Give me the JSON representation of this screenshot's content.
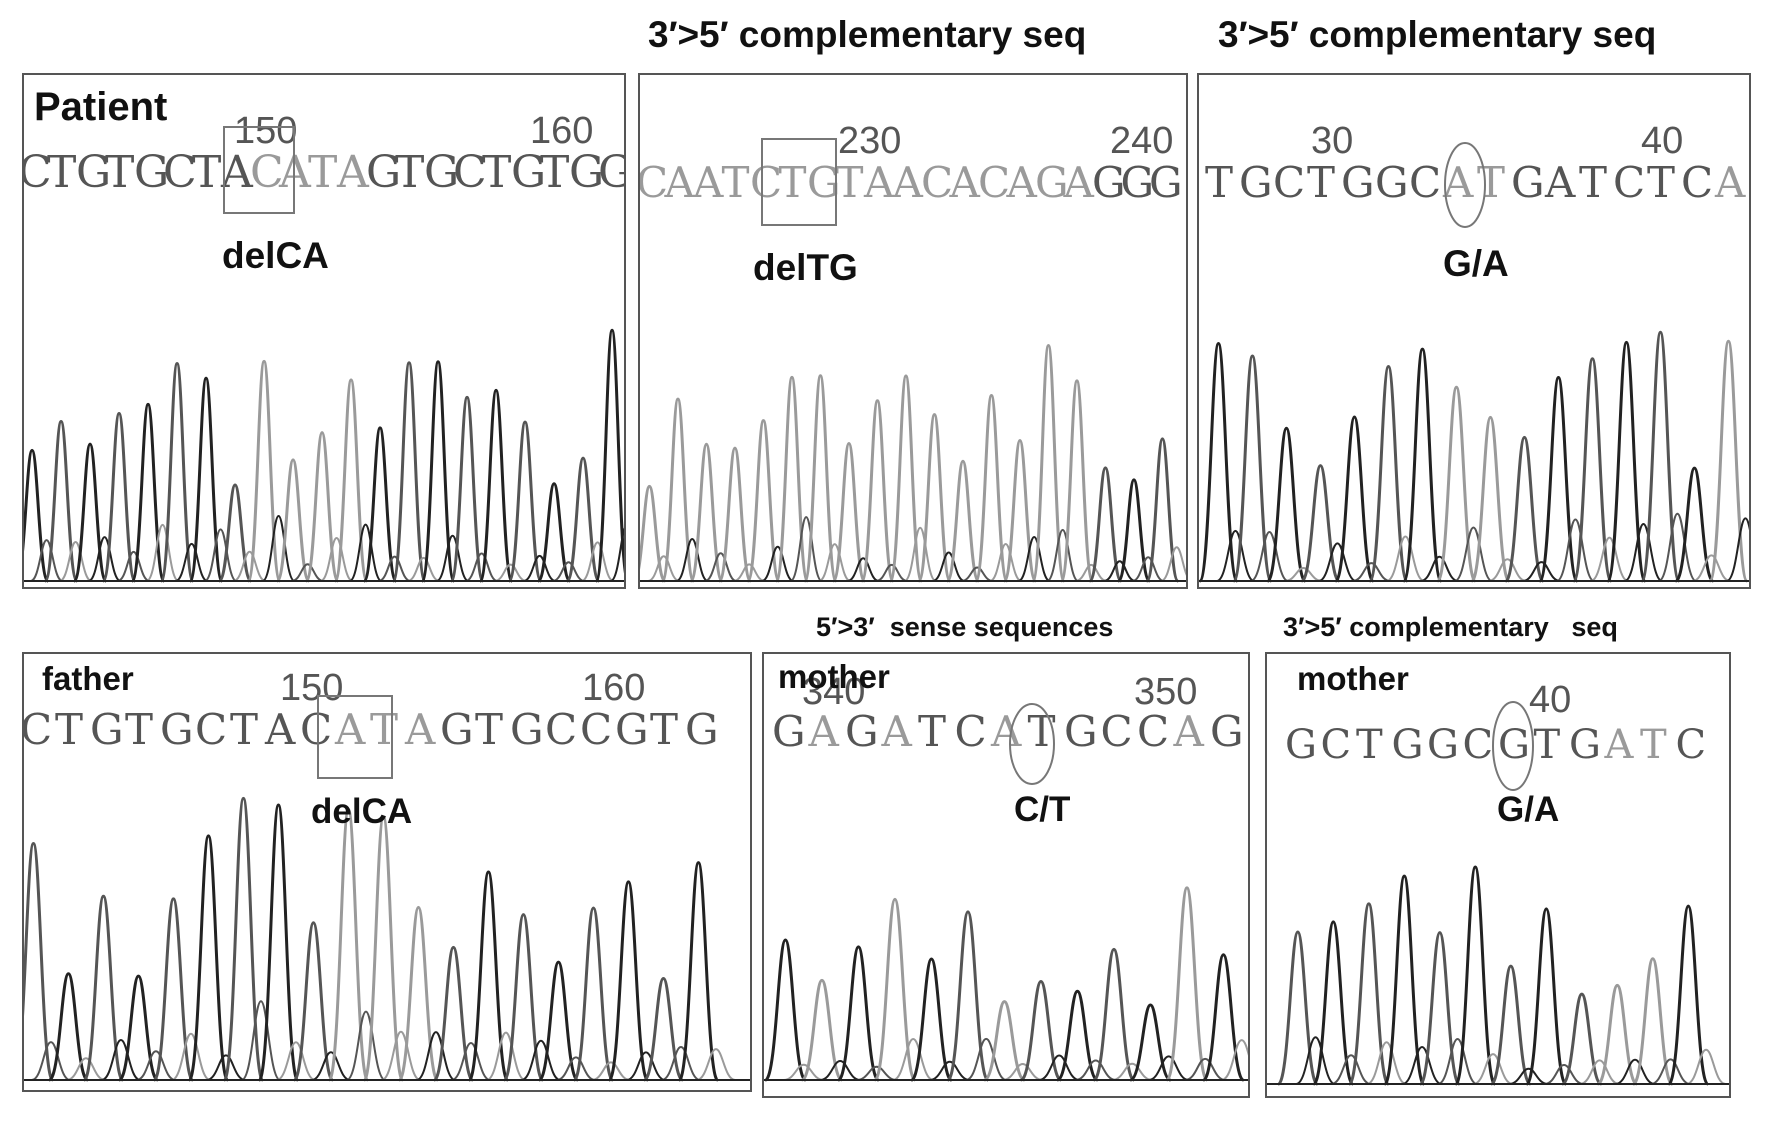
{
  "top_headings": [
    "3′>5′ complementary seq",
    "3′>5′ complementary seq"
  ],
  "bottom_headings": [
    "5′>3′  sense sequences",
    "3′>5′ complementary   seq"
  ],
  "palette": {
    "dark": "#222222",
    "mid": "#555555",
    "light": "#9a9a9a",
    "box": "#777777"
  },
  "panels": [
    {
      "label": "Patient",
      "mutation": "delCA",
      "marker": "box",
      "positions": [
        "150",
        "160"
      ],
      "sequence": [
        {
          "b": "C",
          "s": "m"
        },
        {
          "b": "T",
          "s": "m"
        },
        {
          "b": "G",
          "s": "m"
        },
        {
          "b": "T",
          "s": "m"
        },
        {
          "b": "G",
          "s": "m"
        },
        {
          "b": "C",
          "s": "m"
        },
        {
          "b": "T",
          "s": "m"
        },
        {
          "b": "A",
          "s": "m"
        },
        {
          "b": "C",
          "s": "l"
        },
        {
          "b": "A",
          "s": "l"
        },
        {
          "b": "T",
          "s": "l"
        },
        {
          "b": "A",
          "s": "l"
        },
        {
          "b": "G",
          "s": "m"
        },
        {
          "b": "T",
          "s": "m"
        },
        {
          "b": "G",
          "s": "m"
        },
        {
          "b": "C",
          "s": "m"
        },
        {
          "b": "T",
          "s": "m"
        },
        {
          "b": "G",
          "s": "m"
        },
        {
          "b": "T",
          "s": "m"
        },
        {
          "b": "G",
          "s": "m"
        },
        {
          "b": "G",
          "s": "m"
        }
      ]
    },
    {
      "label": "",
      "mutation": "delTG",
      "marker": "box",
      "positions": [
        "230",
        "240"
      ],
      "sequence": [
        {
          "b": "C",
          "s": "l"
        },
        {
          "b": "A",
          "s": "l"
        },
        {
          "b": "A",
          "s": "l"
        },
        {
          "b": "T",
          "s": "l"
        },
        {
          "b": "C",
          "s": "l"
        },
        {
          "b": "T",
          "s": "l"
        },
        {
          "b": "G",
          "s": "l"
        },
        {
          "b": "T",
          "s": "l"
        },
        {
          "b": "A",
          "s": "l"
        },
        {
          "b": "A",
          "s": "l"
        },
        {
          "b": "C",
          "s": "l"
        },
        {
          "b": "A",
          "s": "l"
        },
        {
          "b": "C",
          "s": "l"
        },
        {
          "b": "A",
          "s": "l"
        },
        {
          "b": "G",
          "s": "l"
        },
        {
          "b": "A",
          "s": "l"
        },
        {
          "b": "G",
          "s": "m"
        },
        {
          "b": "G",
          "s": "m"
        },
        {
          "b": "G",
          "s": "m"
        }
      ]
    },
    {
      "label": "",
      "mutation": "G/A",
      "marker": "ellipse",
      "positions": [
        "30",
        "40"
      ],
      "sequence": [
        {
          "b": "T",
          "s": "m"
        },
        {
          "b": "G",
          "s": "m"
        },
        {
          "b": "C",
          "s": "m"
        },
        {
          "b": "T",
          "s": "m"
        },
        {
          "b": "G",
          "s": "m"
        },
        {
          "b": "G",
          "s": "m"
        },
        {
          "b": "C",
          "s": "m"
        },
        {
          "b": "A",
          "s": "l"
        },
        {
          "b": "T",
          "s": "l"
        },
        {
          "b": "G",
          "s": "m"
        },
        {
          "b": "A",
          "s": "m"
        },
        {
          "b": "T",
          "s": "m"
        },
        {
          "b": "C",
          "s": "m"
        },
        {
          "b": "T",
          "s": "m"
        },
        {
          "b": "C",
          "s": "m"
        },
        {
          "b": "A",
          "s": "l"
        }
      ]
    },
    {
      "label": "father",
      "mutation": "delCA",
      "marker": "box",
      "positions": [
        "150",
        "160"
      ],
      "sequence": [
        {
          "b": "C",
          "s": "m"
        },
        {
          "b": "T",
          "s": "m"
        },
        {
          "b": "G",
          "s": "m"
        },
        {
          "b": "T",
          "s": "m"
        },
        {
          "b": "G",
          "s": "m"
        },
        {
          "b": "C",
          "s": "m"
        },
        {
          "b": "T",
          "s": "m"
        },
        {
          "b": "A",
          "s": "m"
        },
        {
          "b": "C",
          "s": "m"
        },
        {
          "b": "A",
          "s": "l"
        },
        {
          "b": "T",
          "s": "l"
        },
        {
          "b": "A",
          "s": "l"
        },
        {
          "b": "G",
          "s": "m"
        },
        {
          "b": "T",
          "s": "m"
        },
        {
          "b": "G",
          "s": "m"
        },
        {
          "b": "C",
          "s": "m"
        },
        {
          "b": "C",
          "s": "m"
        },
        {
          "b": "G",
          "s": "m"
        },
        {
          "b": "T",
          "s": "m"
        },
        {
          "b": "G",
          "s": "m"
        }
      ]
    },
    {
      "label": "mother",
      "mutation": "C/T",
      "marker": "ellipse",
      "positions": [
        "340",
        "350"
      ],
      "sequence": [
        {
          "b": "G",
          "s": "m"
        },
        {
          "b": "A",
          "s": "l"
        },
        {
          "b": "G",
          "s": "m"
        },
        {
          "b": "A",
          "s": "l"
        },
        {
          "b": "T",
          "s": "m"
        },
        {
          "b": "C",
          "s": "m"
        },
        {
          "b": "A",
          "s": "l"
        },
        {
          "b": "T",
          "s": "m"
        },
        {
          "b": "G",
          "s": "m"
        },
        {
          "b": "C",
          "s": "m"
        },
        {
          "b": "C",
          "s": "m"
        },
        {
          "b": "A",
          "s": "l"
        },
        {
          "b": "G",
          "s": "m"
        }
      ]
    },
    {
      "label": "mother",
      "mutation": "G/A",
      "marker": "ellipse",
      "positions": [
        "40"
      ],
      "sequence": [
        {
          "b": "G",
          "s": "m"
        },
        {
          "b": "C",
          "s": "m"
        },
        {
          "b": "T",
          "s": "m"
        },
        {
          "b": "G",
          "s": "m"
        },
        {
          "b": "G",
          "s": "m"
        },
        {
          "b": "C",
          "s": "m"
        },
        {
          "b": "G",
          "s": "m"
        },
        {
          "b": "T",
          "s": "m"
        },
        {
          "b": "G",
          "s": "m"
        },
        {
          "b": "A",
          "s": "l"
        },
        {
          "b": "T",
          "s": "l"
        },
        {
          "b": "C",
          "s": "m"
        }
      ]
    }
  ]
}
